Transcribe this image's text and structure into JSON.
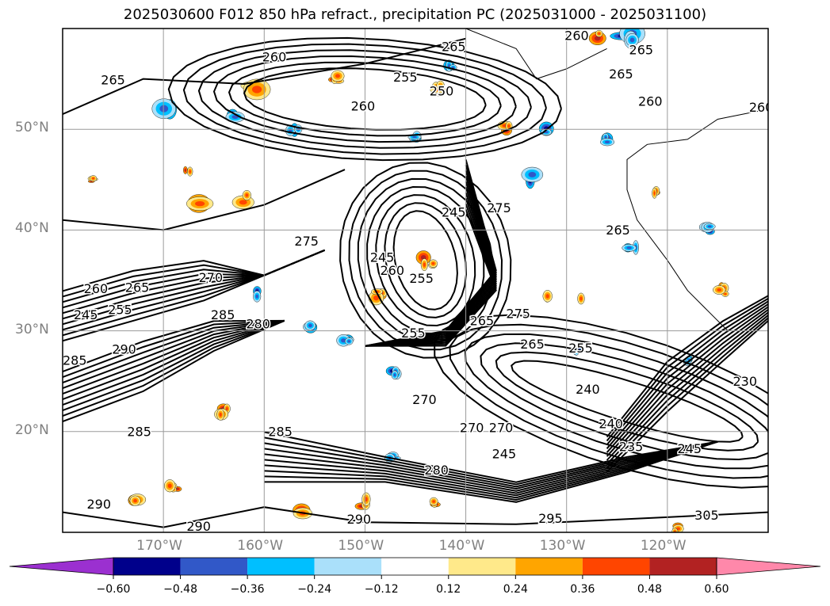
{
  "title": "2025030600 F012 850 hPa refract., precipitation PC (2025031000 - 2025031100)",
  "chart_data": {
    "type": "heatmap",
    "title": "2025030600 F012 850 hPa refract., precipitation PC (2025031000 - 2025031100)",
    "map_region": {
      "lon_range": [
        -180,
        -110
      ],
      "lat_range": [
        10,
        60
      ]
    },
    "lat_ticks": [
      "20°N",
      "30°N",
      "40°N",
      "50°N"
    ],
    "lon_ticks": [
      "170°W",
      "160°W",
      "150°W",
      "140°W",
      "130°W",
      "120°W"
    ],
    "grid": true,
    "colorbar": {
      "orientation": "horizontal",
      "extend": "both",
      "ticks": [
        "−0.60",
        "−0.48",
        "−0.36",
        "−0.24",
        "−0.12",
        "0.12",
        "0.24",
        "0.36",
        "0.48",
        "0.60"
      ],
      "colors": [
        "#9b30d0",
        "#00008b",
        "#3158c8",
        "#00bfff",
        "#aae0fa",
        "#ffffff",
        "#ffe98a",
        "#ffa500",
        "#ff4500",
        "#b22222",
        "#ff88aa"
      ]
    },
    "contour_labels": [
      {
        "text": "265",
        "lon": -175,
        "lat": 54.8
      },
      {
        "text": "260",
        "lon": -159,
        "lat": 57.1
      },
      {
        "text": "255",
        "lon": -146,
        "lat": 55.1
      },
      {
        "text": "250",
        "lon": -142.4,
        "lat": 53.7
      },
      {
        "text": "265",
        "lon": -141.2,
        "lat": 58.1
      },
      {
        "text": "260",
        "lon": -150.2,
        "lat": 52.2
      },
      {
        "text": "260",
        "lon": -129,
        "lat": 59.2
      },
      {
        "text": "265",
        "lon": -122.6,
        "lat": 57.8
      },
      {
        "text": "265",
        "lon": -124.6,
        "lat": 55.4
      },
      {
        "text": "260",
        "lon": -121.7,
        "lat": 52.7
      },
      {
        "text": "260",
        "lon": -110.7,
        "lat": 52.1
      },
      {
        "text": "275",
        "lon": -155.8,
        "lat": 38.8
      },
      {
        "text": "275",
        "lon": -136.7,
        "lat": 42.1
      },
      {
        "text": "245",
        "lon": -141.2,
        "lat": 41.7
      },
      {
        "text": "245",
        "lon": -148.3,
        "lat": 37.2
      },
      {
        "text": "260",
        "lon": -147.3,
        "lat": 35.9
      },
      {
        "text": "255",
        "lon": -144.4,
        "lat": 35.1
      },
      {
        "text": "265",
        "lon": -124.9,
        "lat": 39.9
      },
      {
        "text": "260",
        "lon": -176.7,
        "lat": 34.1
      },
      {
        "text": "265",
        "lon": -172.6,
        "lat": 34.2
      },
      {
        "text": "270",
        "lon": -165.3,
        "lat": 35.2
      },
      {
        "text": "285",
        "lon": -164.1,
        "lat": 31.5
      },
      {
        "text": "280",
        "lon": -160.6,
        "lat": 30.6
      },
      {
        "text": "245",
        "lon": -177.7,
        "lat": 31.5
      },
      {
        "text": "255",
        "lon": -174.3,
        "lat": 32.0
      },
      {
        "text": "290",
        "lon": -173.9,
        "lat": 28.1
      },
      {
        "text": "285",
        "lon": -178.8,
        "lat": 27.0
      },
      {
        "text": "255",
        "lon": -145.2,
        "lat": 29.7
      },
      {
        "text": "265",
        "lon": -138.4,
        "lat": 30.9
      },
      {
        "text": "275",
        "lon": -134.8,
        "lat": 31.6
      },
      {
        "text": "265",
        "lon": -133.4,
        "lat": 28.6
      },
      {
        "text": "255",
        "lon": -128.6,
        "lat": 28.2
      },
      {
        "text": "240",
        "lon": -127.9,
        "lat": 24.1
      },
      {
        "text": "230",
        "lon": -112.3,
        "lat": 24.9
      },
      {
        "text": "270",
        "lon": -144.1,
        "lat": 23.1
      },
      {
        "text": "270",
        "lon": -139.4,
        "lat": 20.3
      },
      {
        "text": "270",
        "lon": -136.5,
        "lat": 20.3
      },
      {
        "text": "245",
        "lon": -136.2,
        "lat": 17.7
      },
      {
        "text": "240",
        "lon": -125.6,
        "lat": 20.7
      },
      {
        "text": "235",
        "lon": -123.6,
        "lat": 18.4
      },
      {
        "text": "245",
        "lon": -117.8,
        "lat": 18.2
      },
      {
        "text": "285",
        "lon": -172.4,
        "lat": 19.9
      },
      {
        "text": "285",
        "lon": -158.4,
        "lat": 19.9
      },
      {
        "text": "280",
        "lon": -142.9,
        "lat": 16.1
      },
      {
        "text": "290",
        "lon": -150.6,
        "lat": 11.2
      },
      {
        "text": "295",
        "lon": -131.6,
        "lat": 11.3
      },
      {
        "text": "290",
        "lon": -176.4,
        "lat": 12.7
      },
      {
        "text": "290",
        "lon": -166.5,
        "lat": 10.5
      },
      {
        "text": "305",
        "lon": -116.1,
        "lat": 11.6
      }
    ]
  }
}
